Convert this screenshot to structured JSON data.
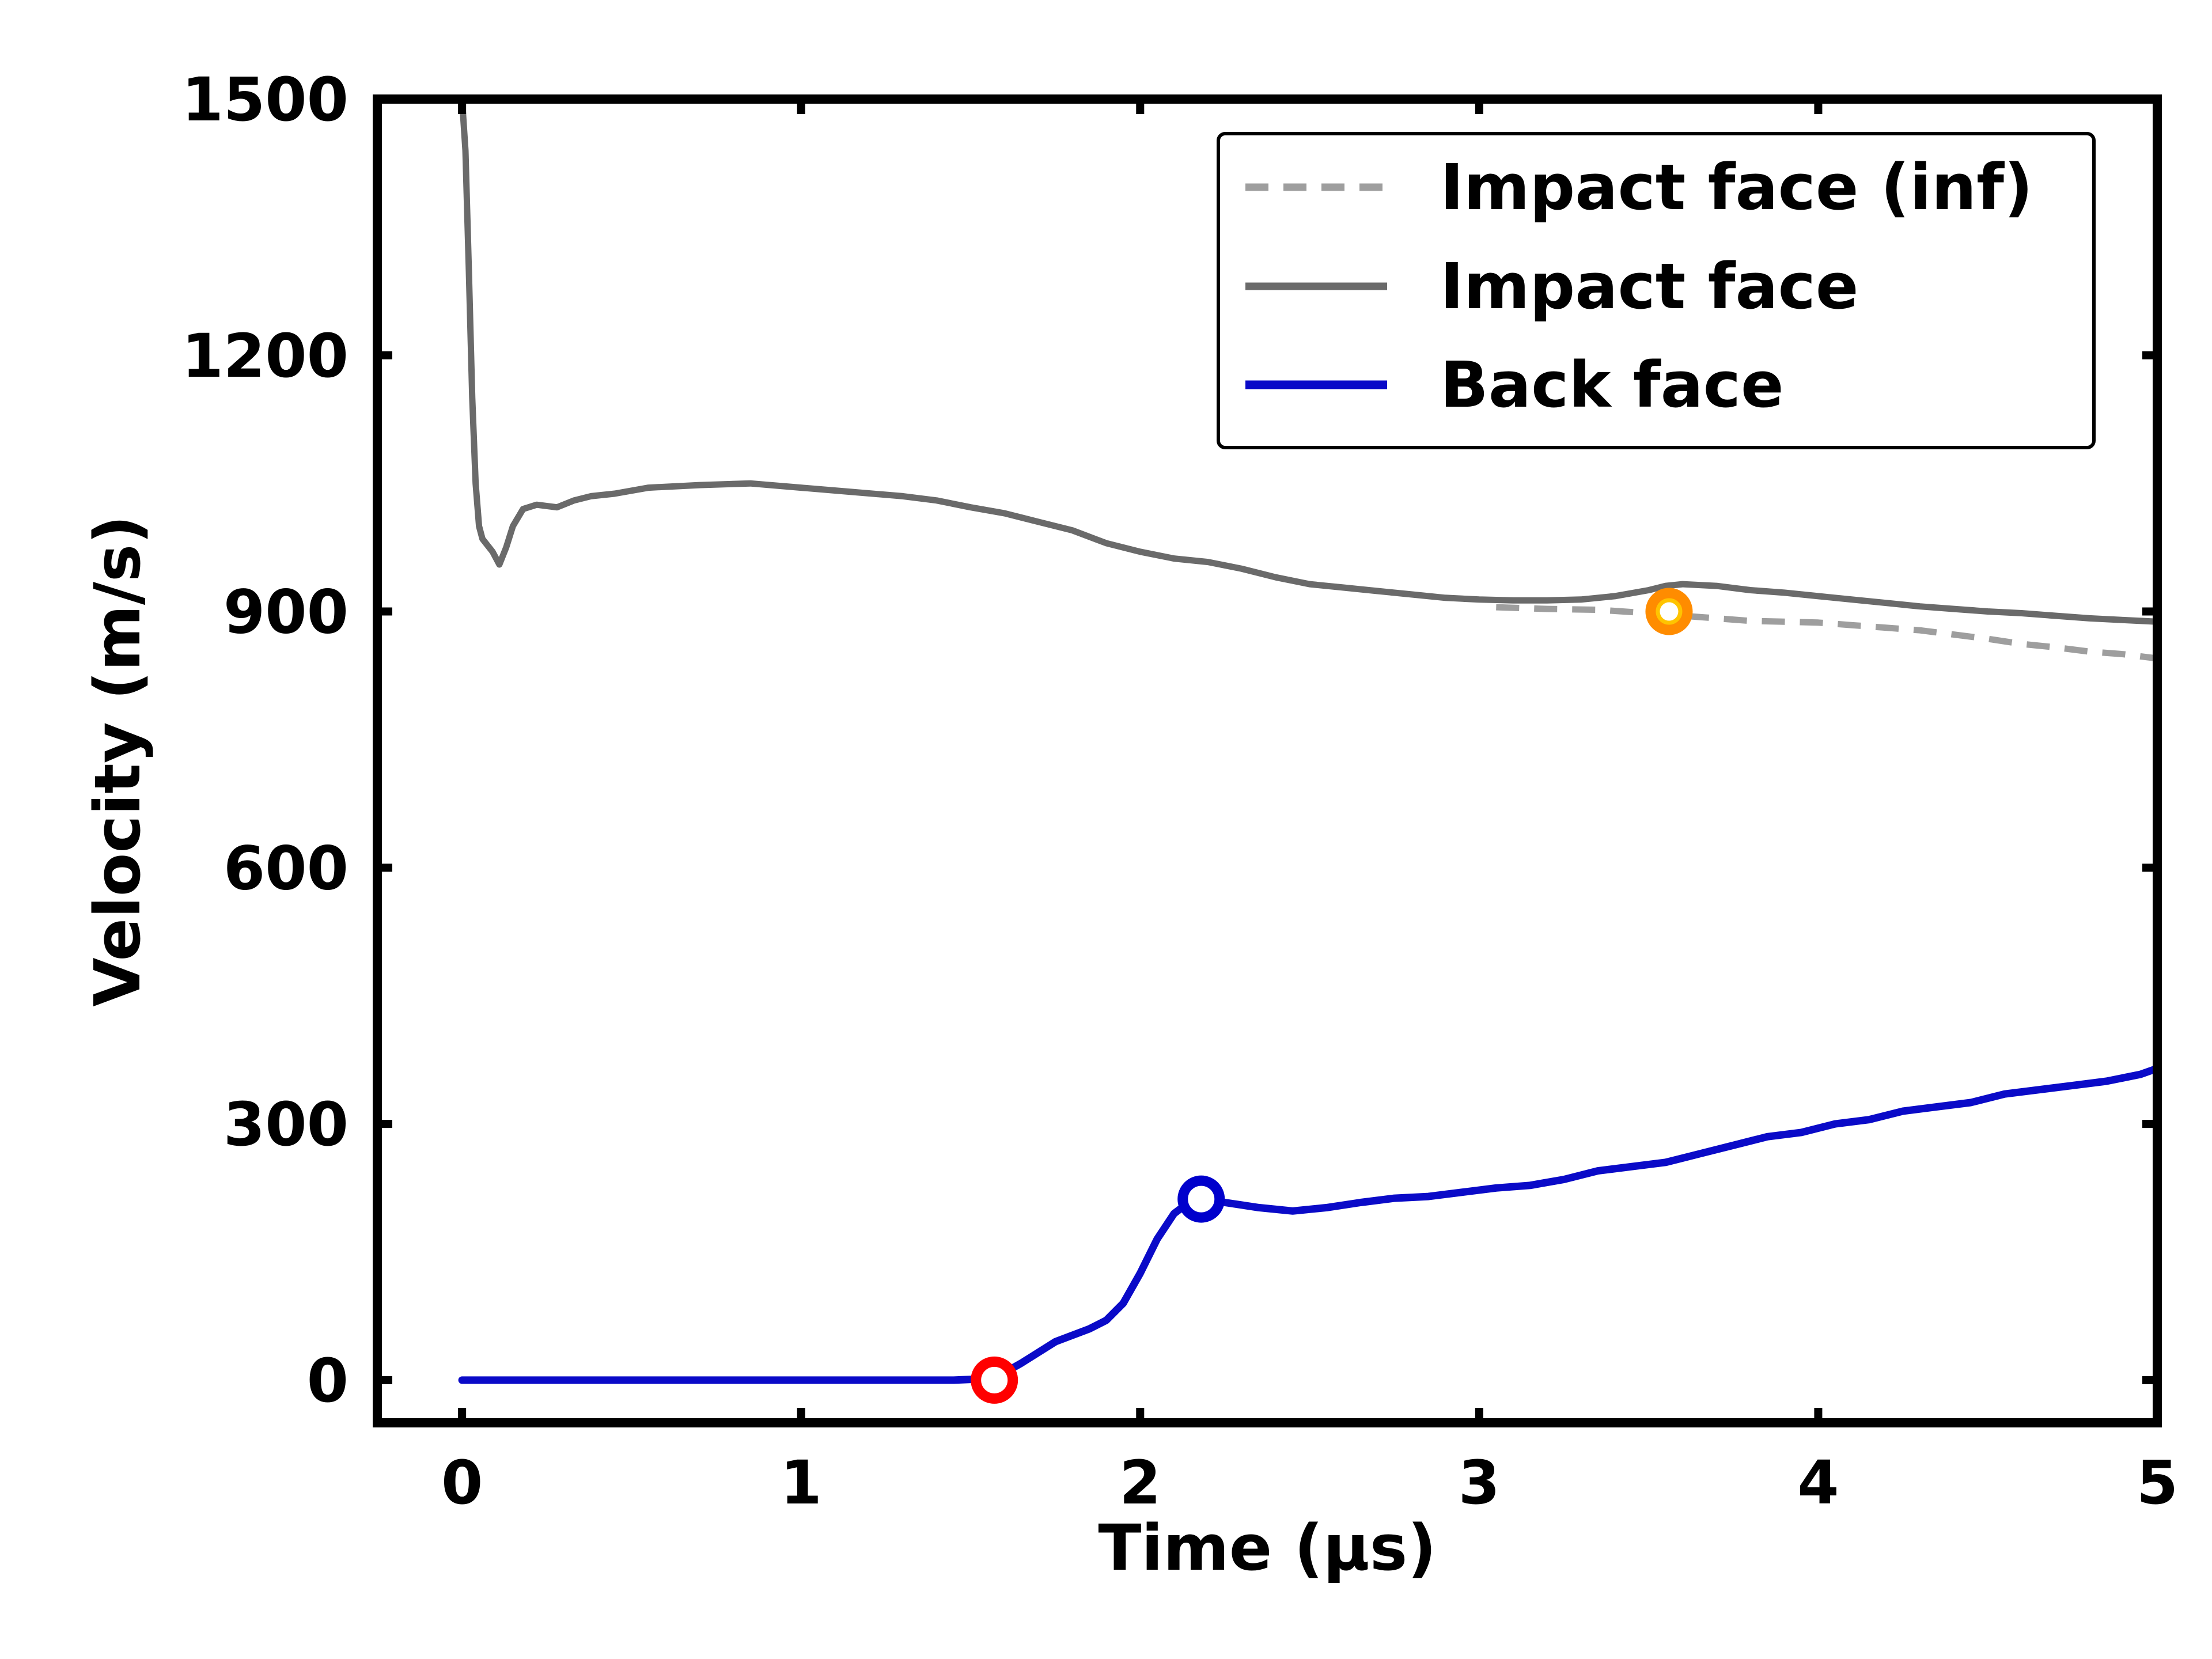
{
  "chart_data": {
    "type": "line",
    "title": "",
    "xlabel": "Time (µs)",
    "ylabel": "Velocity (m/s)",
    "xlim": [
      -0.25,
      5
    ],
    "ylim": [
      -50,
      1500
    ],
    "xticks": [
      0,
      1,
      2,
      3,
      4,
      5
    ],
    "yticks": [
      0,
      300,
      600,
      900,
      1200,
      1500
    ],
    "xtick_labels": [
      "0",
      "1",
      "2",
      "3",
      "4",
      "5"
    ],
    "ytick_labels": [
      "0",
      "300",
      "600",
      "900",
      "1200",
      "1500"
    ],
    "grid": false,
    "legend_position": "top-right",
    "series": [
      {
        "name": "Impact face (inf)",
        "color": "#9e9e9e",
        "style": "dashed",
        "x": [
          3.05,
          3.2,
          3.35,
          3.5,
          3.6,
          3.7,
          3.8,
          3.9,
          4.0,
          4.1,
          4.2,
          4.3,
          4.4,
          4.5,
          4.6,
          4.7,
          4.8,
          4.9,
          5.0
        ],
        "y": [
          905,
          903,
          902,
          898,
          895,
          892,
          889,
          888,
          887,
          884,
          881,
          878,
          873,
          868,
          862,
          858,
          853,
          850,
          845
        ]
      },
      {
        "name": "Impact face",
        "color": "#6a6a6a",
        "style": "solid",
        "x": [
          0.0,
          0.01,
          0.02,
          0.03,
          0.04,
          0.05,
          0.06,
          0.07,
          0.09,
          0.11,
          0.13,
          0.15,
          0.18,
          0.22,
          0.28,
          0.33,
          0.38,
          0.45,
          0.55,
          0.7,
          0.85,
          1.0,
          1.15,
          1.3,
          1.4,
          1.5,
          1.6,
          1.7,
          1.8,
          1.9,
          2.0,
          2.1,
          2.2,
          2.3,
          2.4,
          2.5,
          2.6,
          2.7,
          2.8,
          2.9,
          3.0,
          3.1,
          3.2,
          3.3,
          3.4,
          3.5,
          3.55,
          3.6,
          3.7,
          3.8,
          3.9,
          4.0,
          4.1,
          4.2,
          4.3,
          4.4,
          4.5,
          4.6,
          4.7,
          4.8,
          4.9,
          5.0
        ],
        "y": [
          1500,
          1440,
          1300,
          1150,
          1050,
          1000,
          985,
          980,
          970,
          955,
          975,
          1000,
          1020,
          1025,
          1022,
          1030,
          1035,
          1038,
          1045,
          1048,
          1050,
          1045,
          1040,
          1035,
          1030,
          1022,
          1015,
          1005,
          995,
          980,
          970,
          962,
          958,
          950,
          940,
          932,
          928,
          924,
          920,
          916,
          914,
          913,
          913,
          914,
          918,
          925,
          930,
          932,
          930,
          925,
          922,
          918,
          914,
          910,
          906,
          903,
          900,
          898,
          895,
          892,
          890,
          888
        ]
      },
      {
        "name": "Back face",
        "color": "#0a0ac8",
        "style": "solid",
        "x": [
          0.0,
          0.5,
          1.0,
          1.45,
          1.57,
          1.65,
          1.75,
          1.85,
          1.9,
          1.95,
          2.0,
          2.05,
          2.1,
          2.15,
          2.18,
          2.25,
          2.35,
          2.45,
          2.55,
          2.65,
          2.75,
          2.85,
          2.95,
          3.05,
          3.15,
          3.25,
          3.35,
          3.45,
          3.55,
          3.65,
          3.75,
          3.85,
          3.95,
          4.05,
          4.15,
          4.25,
          4.35,
          4.45,
          4.55,
          4.65,
          4.75,
          4.85,
          4.95,
          5.0
        ],
        "y": [
          0,
          0,
          0,
          0,
          2,
          20,
          45,
          60,
          70,
          90,
          125,
          165,
          195,
          210,
          212,
          208,
          202,
          198,
          202,
          208,
          213,
          215,
          220,
          225,
          228,
          235,
          245,
          250,
          255,
          265,
          275,
          285,
          290,
          300,
          305,
          315,
          320,
          325,
          335,
          340,
          345,
          350,
          358,
          365
        ]
      }
    ],
    "markers": [
      {
        "name": "back-face-onset",
        "x": 1.57,
        "y": 0,
        "edge_color": "#ff0000",
        "fill": "#ffffff"
      },
      {
        "name": "back-face-peak",
        "x": 2.18,
        "y": 212,
        "edge_color": "#0000cc",
        "fill": "#ffffff"
      },
      {
        "name": "impact-face-divergence",
        "x": 3.56,
        "y": 900,
        "edge_color": "#ff8c00",
        "fill": "#ffc400",
        "inner_fill": "#ffffff"
      }
    ]
  }
}
